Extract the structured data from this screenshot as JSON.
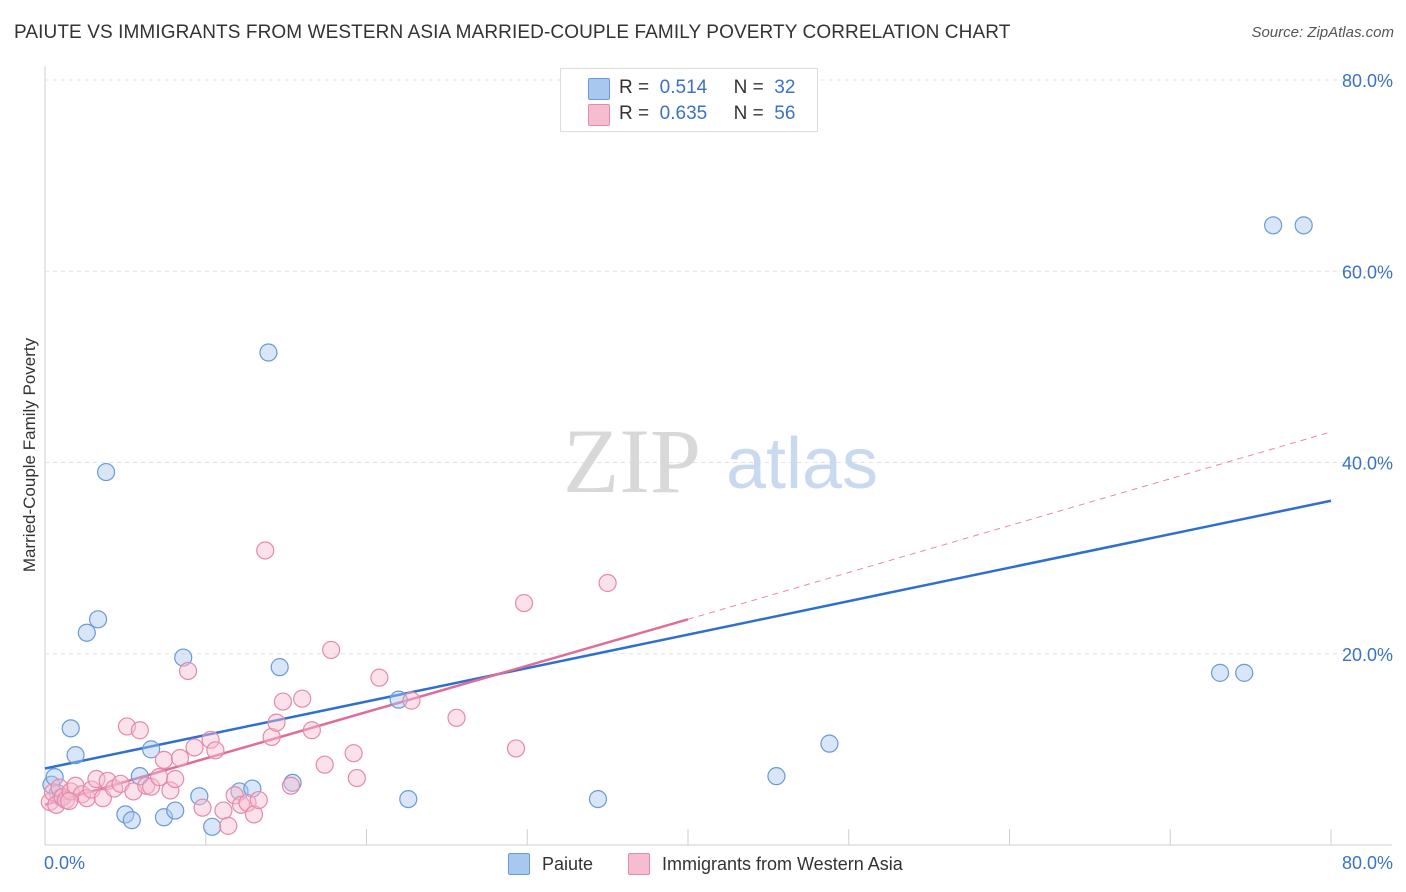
{
  "title": "PAIUTE VS IMMIGRANTS FROM WESTERN ASIA MARRIED-COUPLE FAMILY POVERTY CORRELATION CHART",
  "source": "Source: ZipAtlas.com",
  "watermark": {
    "zip": "ZIP",
    "atlas": "atlas"
  },
  "legend_top": {
    "rows": [
      {
        "r_label": "R =",
        "r_value": "0.514",
        "n_label": "N =",
        "n_value": "32",
        "color": "#a9c8ef",
        "border": "#6a9ad8"
      },
      {
        "r_label": "R =",
        "r_value": "0.635",
        "n_label": "N =",
        "n_value": "56",
        "color": "#f6bcd0",
        "border": "#e58aa9"
      }
    ]
  },
  "legend_bottom": {
    "series": [
      {
        "label": "Paiute",
        "color": "#a9c8ef",
        "border": "#6a9ad8"
      },
      {
        "label": "Immigrants from Western Asia",
        "color": "#f6bcd0",
        "border": "#e58aa9"
      }
    ]
  },
  "chart_data": {
    "type": "scatter",
    "title": "PAIUTE VS IMMIGRANTS FROM WESTERN ASIA MARRIED-COUPLE FAMILY POVERTY CORRELATION CHART",
    "xlabel": "",
    "ylabel": "Married-Couple Family Poverty",
    "xlim": [
      0,
      80
    ],
    "ylim": [
      0,
      80
    ],
    "x_tick_labels": [
      "0.0%",
      "80.0%"
    ],
    "y_tick_labels": [
      "20.0%",
      "40.0%",
      "60.0%",
      "80.0%"
    ],
    "y_ticks": [
      20,
      40,
      60,
      80
    ],
    "grid": true,
    "series": [
      {
        "name": "Paiute",
        "color": "#6a9ad8",
        "fill": "rgba(169,200,239,0.45)",
        "R": 0.514,
        "N": 32,
        "trend": {
          "x1": 0,
          "y1": 8.0,
          "x2": 80,
          "y2": 36.0,
          "style": "solid",
          "color": "#2f6fd0"
        },
        "points": [
          [
            0.4,
            6.3
          ],
          [
            0.6,
            7.1
          ],
          [
            0.8,
            5.4
          ],
          [
            1.6,
            12.2
          ],
          [
            1.9,
            9.4
          ],
          [
            2.6,
            22.2
          ],
          [
            3.3,
            23.6
          ],
          [
            3.8,
            39.0
          ],
          [
            5.0,
            3.2
          ],
          [
            5.4,
            2.6
          ],
          [
            5.9,
            7.2
          ],
          [
            6.6,
            10.0
          ],
          [
            7.4,
            2.9
          ],
          [
            8.1,
            3.6
          ],
          [
            8.6,
            19.6
          ],
          [
            9.6,
            5.1
          ],
          [
            10.4,
            1.9
          ],
          [
            12.1,
            5.6
          ],
          [
            12.9,
            5.9
          ],
          [
            13.9,
            51.5
          ],
          [
            14.6,
            18.6
          ],
          [
            15.4,
            6.5
          ],
          [
            22.0,
            15.2
          ],
          [
            22.6,
            4.8
          ],
          [
            34.4,
            4.8
          ],
          [
            45.5,
            7.2
          ],
          [
            48.8,
            10.6
          ],
          [
            73.1,
            18.0
          ],
          [
            74.6,
            18.0
          ],
          [
            76.4,
            64.8
          ],
          [
            78.3,
            64.8
          ],
          [
            1.0,
            5.0
          ]
        ]
      },
      {
        "name": "Immigrants from Western Asia",
        "color": "#e58aa9",
        "fill": "rgba(246,188,208,0.45)",
        "R": 0.635,
        "N": 56,
        "trend": {
          "x1": 0,
          "y1": 4.2,
          "x2": 40,
          "y2": 23.6,
          "style": "solid",
          "color": "#e06c98",
          "ext_x2": 80,
          "ext_y2": 43.2,
          "ext_style": "dashed"
        },
        "points": [
          [
            0.3,
            4.5
          ],
          [
            0.5,
            5.5
          ],
          [
            0.7,
            4.2
          ],
          [
            0.9,
            6.0
          ],
          [
            1.1,
            5.0
          ],
          [
            1.3,
            4.7
          ],
          [
            1.6,
            5.6
          ],
          [
            1.9,
            6.2
          ],
          [
            2.3,
            5.3
          ],
          [
            2.6,
            4.9
          ],
          [
            2.9,
            5.8
          ],
          [
            3.2,
            6.9
          ],
          [
            3.6,
            4.9
          ],
          [
            3.9,
            6.7
          ],
          [
            4.3,
            5.9
          ],
          [
            4.7,
            6.4
          ],
          [
            5.1,
            12.4
          ],
          [
            5.5,
            5.6
          ],
          [
            5.9,
            12.0
          ],
          [
            6.3,
            6.2
          ],
          [
            6.6,
            6.1
          ],
          [
            7.1,
            7.1
          ],
          [
            7.4,
            8.9
          ],
          [
            7.8,
            5.7
          ],
          [
            8.1,
            6.9
          ],
          [
            8.4,
            9.1
          ],
          [
            8.9,
            18.2
          ],
          [
            9.3,
            10.2
          ],
          [
            9.8,
            3.9
          ],
          [
            10.3,
            11.0
          ],
          [
            10.6,
            9.9
          ],
          [
            11.1,
            3.6
          ],
          [
            11.4,
            2.0
          ],
          [
            11.8,
            5.2
          ],
          [
            12.2,
            4.2
          ],
          [
            12.6,
            4.4
          ],
          [
            13.0,
            3.2
          ],
          [
            13.3,
            4.7
          ],
          [
            13.7,
            30.8
          ],
          [
            14.1,
            11.3
          ],
          [
            14.4,
            12.8
          ],
          [
            14.8,
            15.0
          ],
          [
            15.3,
            6.2
          ],
          [
            16.0,
            15.3
          ],
          [
            16.6,
            12.0
          ],
          [
            17.4,
            8.4
          ],
          [
            17.8,
            20.4
          ],
          [
            19.2,
            9.6
          ],
          [
            19.4,
            7.0
          ],
          [
            20.8,
            17.5
          ],
          [
            22.8,
            15.1
          ],
          [
            25.6,
            13.3
          ],
          [
            29.3,
            10.1
          ],
          [
            29.8,
            25.3
          ],
          [
            35.0,
            27.4
          ],
          [
            1.5,
            4.6
          ]
        ]
      }
    ]
  }
}
